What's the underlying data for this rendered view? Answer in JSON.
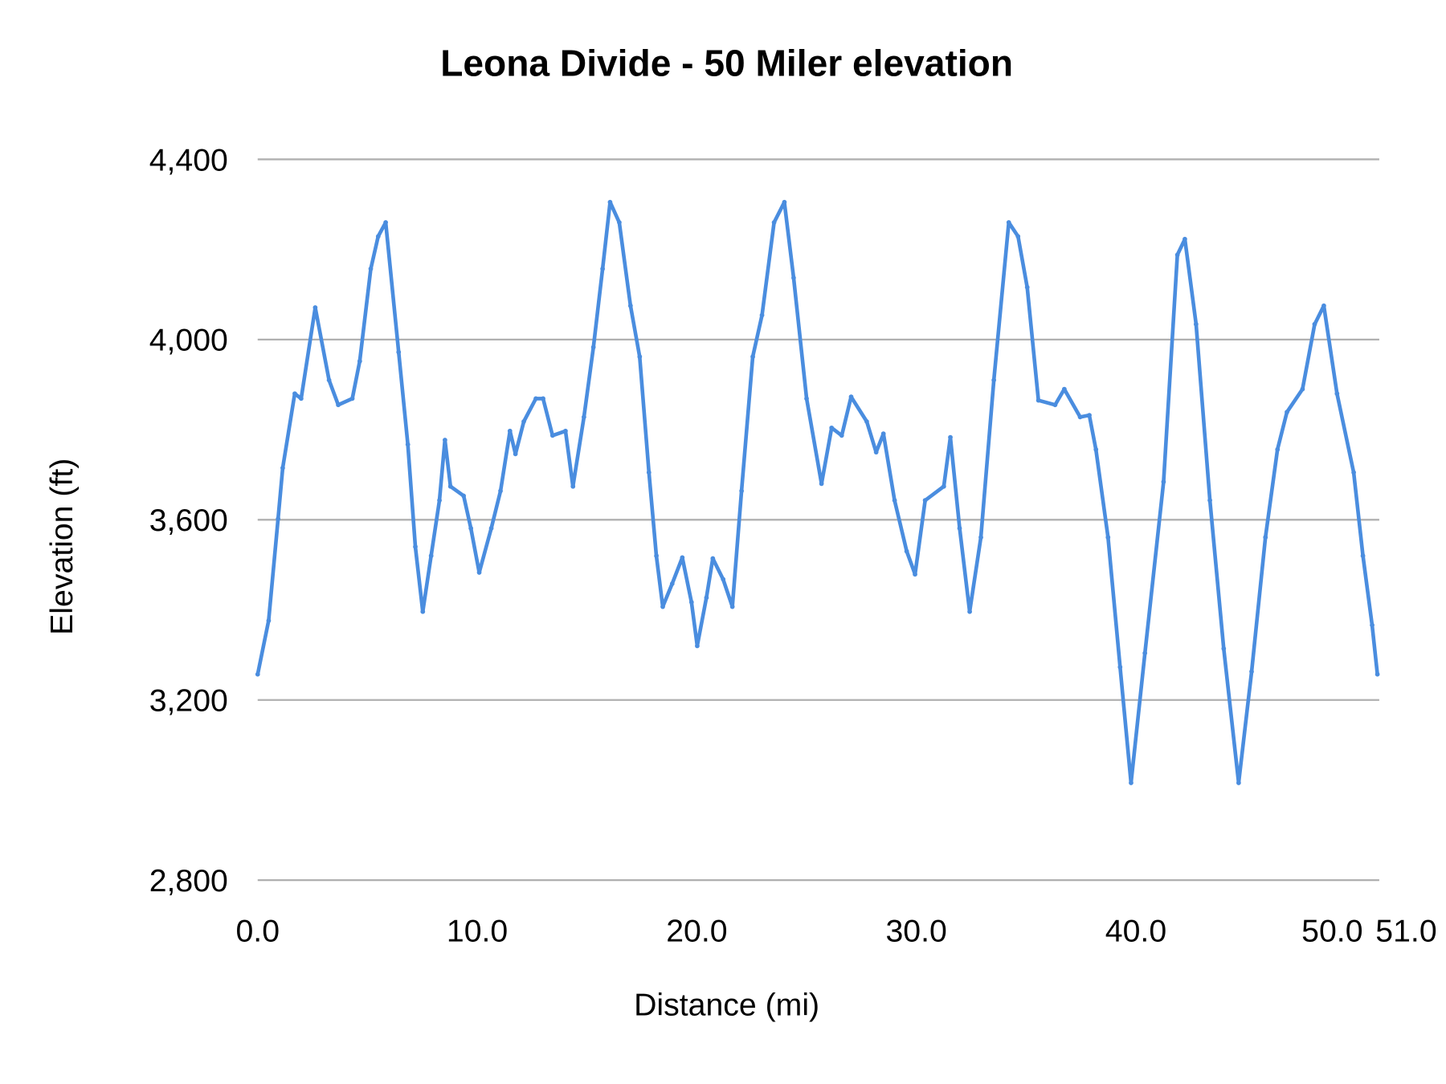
{
  "chart_data": {
    "type": "line",
    "title": "Leona Divide - 50 Miler elevation",
    "xlabel": "Distance (mi)",
    "ylabel": "Elevation (ft)",
    "xlim": [
      0,
      51
    ],
    "ylim": [
      2800,
      4400
    ],
    "x_ticks": [
      "0.0",
      "10.0",
      "20.0",
      "30.0",
      "40.0",
      "50.0",
      "51.0"
    ],
    "x_tick_values": [
      0,
      10,
      20,
      30,
      40,
      50,
      51
    ],
    "y_ticks": [
      "2,800",
      "3,200",
      "3,600",
      "4,000",
      "4,400"
    ],
    "y_tick_values": [
      2800,
      3200,
      3600,
      4000,
      4400
    ],
    "grid": "horizontal",
    "series_color": "#4a8ddf",
    "series": [
      {
        "x": [
          0,
          0.5,
          0.93,
          1.14,
          1.69,
          1.98,
          2.62,
          3.25,
          3.67,
          4.31,
          4.65,
          5.15,
          5.49,
          5.83,
          6.42,
          6.84,
          7.18,
          7.52,
          7.9,
          8.28,
          8.53,
          8.78,
          9.38,
          9.71,
          10.09,
          10.64,
          11.06,
          11.49,
          11.74,
          12.12,
          12.67,
          13.0,
          13.43,
          14.02,
          14.36,
          14.86,
          15.29,
          15.71,
          16.05,
          16.47,
          16.98,
          17.4,
          17.82,
          18.16,
          18.45,
          18.88,
          19.34,
          19.76,
          20.02,
          20.44,
          20.73,
          21.2,
          21.62,
          22.04,
          22.55,
          22.97,
          23.52,
          23.99,
          24.41,
          25.0,
          25.68,
          26.14,
          26.6,
          27.03,
          27.74,
          28.17,
          28.5,
          29.01,
          29.56,
          29.94,
          30.4,
          31.25,
          31.55,
          31.97,
          32.43,
          32.94,
          33.53,
          34.21,
          34.63,
          35.05,
          35.56,
          36.32,
          36.74,
          37.46,
          37.88,
          38.18,
          38.73,
          39.28,
          39.78,
          40.41,
          41.26,
          41.89,
          42.23,
          42.74,
          43.37,
          44.0,
          44.68,
          45.27,
          45.9,
          46.45,
          46.88,
          47.59,
          48.14,
          48.56,
          49.16,
          49.92,
          50.34,
          50.76,
          51.0
        ],
        "y": [
          3257,
          3376,
          3602,
          3715,
          3880,
          3869,
          4071,
          3910,
          3855,
          3869,
          3952,
          4157,
          4229,
          4260,
          3972,
          3767,
          3540,
          3396,
          3520,
          3643,
          3777,
          3674,
          3653,
          3581,
          3483,
          3581,
          3664,
          3797,
          3746,
          3818,
          3869,
          3869,
          3787,
          3797,
          3674,
          3828,
          3983,
          4157,
          4305,
          4260,
          4075,
          3962,
          3705,
          3520,
          3407,
          3458,
          3516,
          3417,
          3320,
          3427,
          3514,
          3468,
          3407,
          3664,
          3962,
          4054,
          4260,
          4305,
          4137,
          3869,
          3680,
          3804,
          3787,
          3873,
          3818,
          3750,
          3791,
          3643,
          3530,
          3479,
          3643,
          3674,
          3783,
          3581,
          3396,
          3561,
          3910,
          4260,
          4229,
          4116,
          3865,
          3855,
          3890,
          3828,
          3832,
          3756,
          3561,
          3273,
          3016,
          3304,
          3684,
          4188,
          4223,
          4034,
          3643,
          3314,
          3016,
          3263,
          3561,
          3756,
          3839,
          3890,
          4034,
          4075,
          3880,
          3705,
          3520,
          3366,
          3257
        ]
      }
    ]
  }
}
